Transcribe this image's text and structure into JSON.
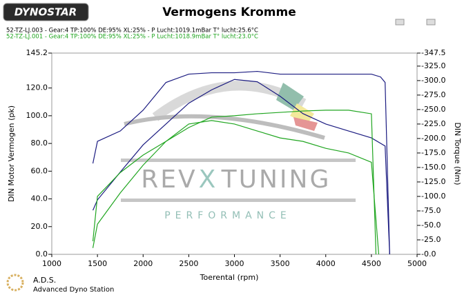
{
  "chart_data": {
    "type": "line",
    "title": "Vermogens Kromme",
    "logo": "DYNOSTAR",
    "footer": {
      "title": "A.D.S.",
      "subtitle": "Advanced Dyno Station"
    },
    "watermark": {
      "left": "REV",
      "middle": "X",
      "right": "TUNING",
      "bottom": "PERFORMANCE"
    },
    "x_label": "Toerental (rpm)",
    "y_label": "DIN Motor Vermogen (pk)",
    "y2_label": "DIN Torque (Nm)",
    "xlim": [
      1000,
      5000
    ],
    "xticks": [
      1000,
      1500,
      2000,
      2500,
      3000,
      3500,
      4000,
      4500,
      5000
    ],
    "ylim": [
      0,
      145.2
    ],
    "yticks": [
      {
        "value": 0,
        "label": "0.0"
      },
      {
        "value": 20,
        "label": "20.0"
      },
      {
        "value": 40,
        "label": "40.0"
      },
      {
        "value": 60,
        "label": "60.0"
      },
      {
        "value": 80,
        "label": "80.0"
      },
      {
        "value": 100,
        "label": "100.0"
      },
      {
        "value": 120,
        "label": "120.0"
      },
      145.2
    ],
    "y2lim": [
      0,
      347.5
    ],
    "y2ticks": [
      {
        "value": 0,
        "label": "-0.0"
      },
      {
        "value": 25,
        "label": "-25.0"
      },
      {
        "value": 50,
        "label": "-50.0"
      },
      {
        "value": 75,
        "label": "-75.0"
      },
      {
        "value": 100,
        "label": "-100.0"
      },
      {
        "value": 125,
        "label": "-125.0"
      },
      {
        "value": 150,
        "label": "-150.0"
      },
      {
        "value": 175,
        "label": "-175.0"
      },
      {
        "value": 200,
        "label": "-200.0"
      },
      {
        "value": 225,
        "label": "-225.0"
      },
      {
        "value": 250,
        "label": "-250.0"
      },
      {
        "value": 275,
        "label": "-275.0"
      },
      {
        "value": 300,
        "label": "-300.0"
      },
      {
        "value": 325,
        "label": "-325.0"
      },
      {
        "value": 347.5,
        "label": "-347.5"
      }
    ],
    "series": [
      {
        "name": "52-TZ-LJ.003 - Gear:4 TP:100% DE:95% XL:25%   - P Lucht:1019.1mBar T° lucht:25.6°C",
        "color": "#1a1a80",
        "x": [
          1450,
          1500,
          1750,
          2000,
          2250,
          2500,
          2750,
          3000,
          3250,
          3500,
          3750,
          4000,
          4250,
          4500,
          4600,
          4650,
          4700
        ],
        "values": [
          65.6,
          81.5,
          89,
          104,
          124,
          130,
          131,
          131,
          132,
          130,
          130,
          130,
          130,
          130,
          128,
          124,
          0
        ],
        "torque": {
          "axis": "y2",
          "x": [
            1450,
            1500,
            1750,
            2000,
            2250,
            2500,
            2750,
            3000,
            3250,
            3500,
            3750,
            4000,
            4250,
            4500,
            4650,
            4700
          ],
          "values": [
            76,
            94,
            142,
            189,
            225,
            261,
            284,
            302,
            298,
            273,
            243,
            225,
            213,
            201,
            187,
            0
          ]
        }
      },
      {
        "name": "52-TZ-LJ.001 - Gear:4 TP:100% DE:95% XL:25%   - P Lucht:1018.9mBar T° lucht:23.0°C",
        "color": "#1fa51f",
        "x": [
          1450,
          1500,
          1750,
          2000,
          2250,
          2500,
          2750,
          3000,
          3250,
          3500,
          3750,
          4000,
          4250,
          4500,
          4550
        ],
        "values": [
          9.5,
          41.8,
          59,
          71.6,
          81.5,
          91.5,
          99,
          100,
          101.4,
          102.4,
          103.4,
          104,
          104,
          101.4,
          0
        ],
        "torque": {
          "axis": "y2",
          "x": [
            1450,
            1500,
            1750,
            2000,
            2250,
            2500,
            2750,
            3000,
            3250,
            3500,
            3750,
            4000,
            4250,
            4500,
            4580
          ],
          "values": [
            11,
            52,
            106,
            154,
            195,
            225,
            231,
            225,
            213,
            201,
            195,
            183,
            175,
            159,
            0
          ]
        }
      }
    ]
  }
}
